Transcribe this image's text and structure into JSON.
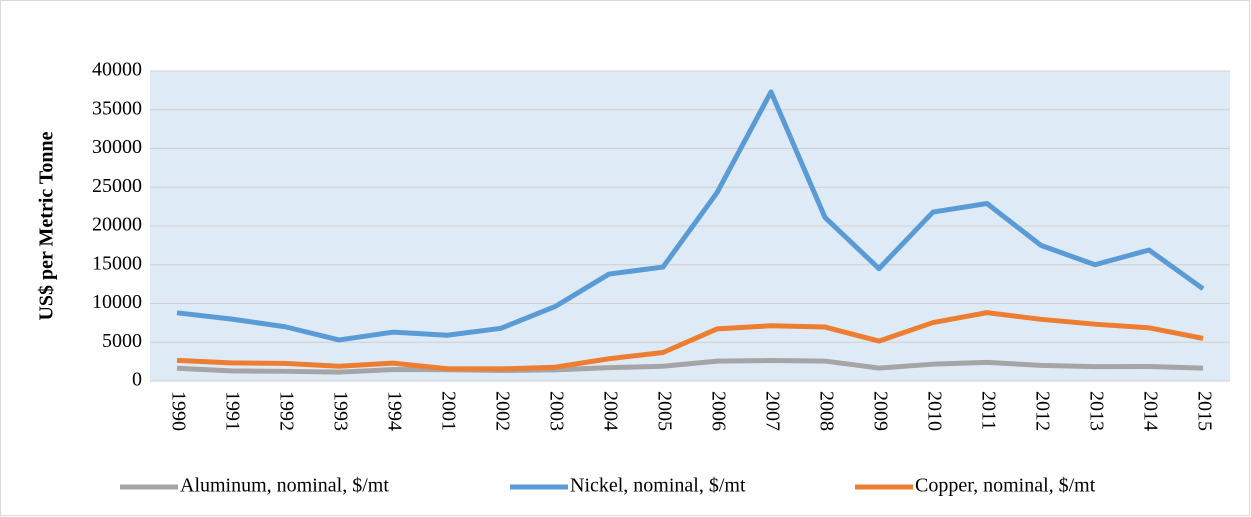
{
  "chart_data": {
    "type": "line",
    "y_axis_label": "US$ per Metric Tonne",
    "categories": [
      "1990",
      "1991",
      "1992",
      "1993",
      "1994",
      "2001",
      "2002",
      "2003",
      "2004",
      "2005",
      "2006",
      "2007",
      "2008",
      "2009",
      "2010",
      "2011",
      "2012",
      "2013",
      "2014",
      "2015"
    ],
    "series": [
      {
        "name": "Aluminum, nominal, $/mt",
        "color": "#a5a5a5",
        "values": [
          1640,
          1300,
          1250,
          1140,
          1480,
          1450,
          1350,
          1430,
          1720,
          1900,
          2570,
          2640,
          2570,
          1670,
          2170,
          2400,
          2020,
          1850,
          1870,
          1660
        ]
      },
      {
        "name": "Nickel, nominal, $/mt",
        "color": "#5b9bd5",
        "values": [
          8800,
          8000,
          7000,
          5300,
          6300,
          5900,
          6800,
          9600,
          13800,
          14700,
          24300,
          37300,
          21100,
          14500,
          21800,
          22900,
          17500,
          15000,
          16900,
          11900
        ]
      },
      {
        "name": "Copper, nominal, $/mt",
        "color": "#ed7d31",
        "values": [
          2660,
          2340,
          2280,
          1910,
          2310,
          1580,
          1560,
          1780,
          2870,
          3680,
          6720,
          7130,
          6960,
          5150,
          7540,
          8820,
          7960,
          7330,
          6860,
          5500
        ]
      }
    ],
    "ylim": [
      0,
      40000
    ],
    "yticks": [
      0,
      5000,
      10000,
      15000,
      20000,
      25000,
      30000,
      35000,
      40000
    ],
    "grid": true,
    "legend": "bottom"
  }
}
